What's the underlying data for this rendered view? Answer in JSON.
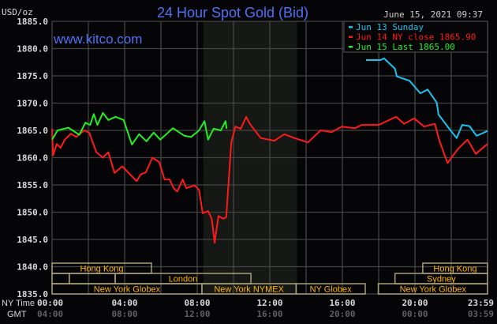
{
  "chart_data": {
    "type": "line",
    "title": "24 Hour Spot Gold (Bid)",
    "watermark": "www.kitco.com",
    "timestamp": "June 15, 2021 09:37",
    "ylabel": "USD/oz",
    "ylim": [
      1835,
      1885
    ],
    "xlim_hours": [
      0,
      24
    ],
    "grid": true,
    "legend_placement": "top-right",
    "y_ticks": [
      "1885.0",
      "1880.0",
      "1875.0",
      "1870.0",
      "1865.0",
      "1860.0",
      "1855.0",
      "1850.0",
      "1845.0",
      "1840.0",
      "1835.0"
    ],
    "x_axis_rows": [
      {
        "label": "NY Time",
        "ticks": [
          "00:00",
          "04:00",
          "08:00",
          "12:00",
          "16:00",
          "20:00",
          "23:59"
        ]
      },
      {
        "label": "GMT",
        "ticks": [
          "04:00",
          "08:00",
          "12:00",
          "16:00",
          "20:00",
          "00:00",
          "03:59"
        ]
      }
    ],
    "shaded_hours": [
      8.33,
      13.5
    ],
    "series": [
      {
        "name": "Jun 13 Sunday",
        "legend": "Jun 13 Sunday",
        "color": "#19c3f0",
        "x": [
          17.3,
          18.1,
          18.3,
          18.9,
          19.0,
          19.7,
          20.3,
          20.7,
          21.2,
          21.3,
          21.8,
          22.3,
          22.6,
          23.0,
          23.4,
          24.0
        ],
        "y": [
          1877.9,
          1877.9,
          1878.2,
          1876.3,
          1874.9,
          1874.1,
          1871.8,
          1872.5,
          1870.1,
          1867.9,
          1865.7,
          1863.6,
          1866.0,
          1865.8,
          1864.0,
          1864.9
        ]
      },
      {
        "name": "Jun 14 NY close 1865.90",
        "legend": "Jun 14 NY close 1865.90",
        "color": "#ff1a1a",
        "x": [
          0,
          0.05,
          0.26,
          0.47,
          0.7,
          1.04,
          1.33,
          1.77,
          2.05,
          2.44,
          2.8,
          3.1,
          3.44,
          3.87,
          4.66,
          4.88,
          5.17,
          5.53,
          5.9,
          6.2,
          6.48,
          6.7,
          6.9,
          7.2,
          7.4,
          7.85,
          8.1,
          8.3,
          8.6,
          8.8,
          8.96,
          9.17,
          9.43,
          9.6,
          9.74,
          9.88,
          10.1,
          10.4,
          10.7,
          10.9,
          11.5,
          12.26,
          12.8,
          13.35,
          14.1,
          14.8,
          15.4,
          15.97,
          16.7,
          17.05,
          18.0,
          18.96,
          19.4,
          19.96,
          20.5,
          21.1,
          21.35,
          21.8,
          22.1,
          22.4,
          22.9,
          23.35,
          24.0
        ],
        "y": [
          1865.3,
          1860.4,
          1862.5,
          1861.8,
          1863.3,
          1864.4,
          1863.8,
          1865.0,
          1864.6,
          1861.0,
          1860.0,
          1861.0,
          1857.2,
          1858.4,
          1855.7,
          1856.9,
          1857.3,
          1860.0,
          1859.2,
          1856.0,
          1856.0,
          1854.4,
          1853.8,
          1856.0,
          1854.4,
          1854.9,
          1854.1,
          1849.8,
          1850.2,
          1848.8,
          1844.4,
          1849.3,
          1848.8,
          1849.1,
          1856.0,
          1862.8,
          1865.7,
          1865.3,
          1867.5,
          1866.2,
          1863.6,
          1863.1,
          1864.3,
          1863.6,
          1862.8,
          1865.0,
          1864.7,
          1865.7,
          1865.4,
          1866.0,
          1866.0,
          1867.5,
          1866.2,
          1867.2,
          1865.7,
          1866.2,
          1863.1,
          1859.0,
          1860.4,
          1861.7,
          1863.3,
          1860.7,
          1862.5
        ]
      },
      {
        "name": "Jun 15 Last 1865.00",
        "legend": "Jun 15 Last 1865.00",
        "color": "#22ee22",
        "x": [
          0,
          0.3,
          0.9,
          1.5,
          1.84,
          2.1,
          2.3,
          2.5,
          2.8,
          3.1,
          3.5,
          3.95,
          4.4,
          4.8,
          5.2,
          5.6,
          5.96,
          6.66,
          7.3,
          7.66,
          8.1,
          8.4,
          8.6,
          8.9,
          9.3,
          9.56,
          9.62
        ],
        "y": [
          1863.3,
          1865.0,
          1865.5,
          1864.2,
          1866.4,
          1866.0,
          1868.0,
          1866.0,
          1868.2,
          1866.9,
          1867.5,
          1866.9,
          1862.4,
          1864.3,
          1863.0,
          1864.6,
          1863.3,
          1865.4,
          1864.0,
          1863.8,
          1865.0,
          1866.7,
          1863.3,
          1865.3,
          1865.0,
          1866.7,
          1865.3
        ]
      }
    ],
    "sessions": [
      {
        "row": 0,
        "start": 0,
        "end": 5.48,
        "label": "Hong Kong"
      },
      {
        "row": 0,
        "start": 20.43,
        "end": 24,
        "label": "Hong Kong"
      },
      {
        "row": 1,
        "start": 0,
        "end": 0.95,
        "label": ""
      },
      {
        "row": 1,
        "start": 0.95,
        "end": 3.48,
        "label": ""
      },
      {
        "row": 1,
        "start": 3.48,
        "end": 10.96,
        "label": "London"
      },
      {
        "row": 1,
        "start": 18.9,
        "end": 24,
        "label": "Sydney"
      },
      {
        "row": 2,
        "start": 0,
        "end": 8.26,
        "label": "New York Globex"
      },
      {
        "row": 2,
        "start": 8.26,
        "end": 13.45,
        "label": "New York NYMEX"
      },
      {
        "row": 2,
        "start": 13.45,
        "end": 17.26,
        "label": "NY Globex"
      },
      {
        "row": 2,
        "start": 17.98,
        "end": 24,
        "label": "New York Globex"
      }
    ]
  }
}
